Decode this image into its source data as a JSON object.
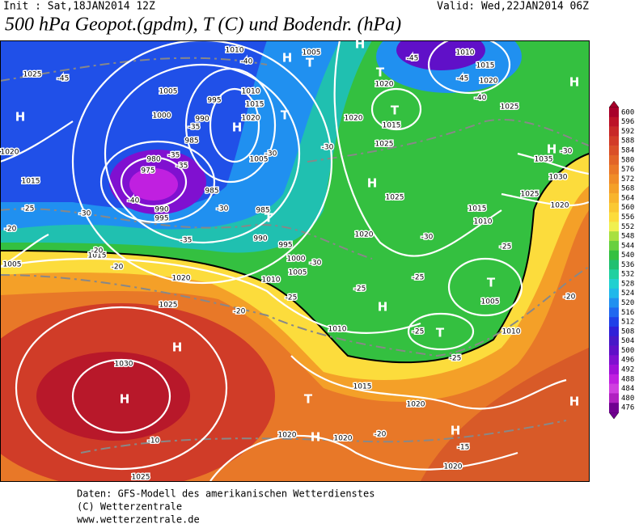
{
  "header": {
    "init": "Init : Sat,18JAN2014 12Z",
    "valid": "Valid: Wed,22JAN2014 06Z",
    "title": "500 hPa Geopot.(gpdm), T (C) und Bodendr. (hPa)"
  },
  "pressure_centers": [
    "H",
    "T",
    "H",
    "T",
    "H",
    "H",
    "H",
    "T",
    "T",
    "H",
    "H",
    "T",
    "T",
    "H",
    "T",
    "H",
    "H",
    "T",
    "H",
    "H",
    "H"
  ],
  "isobar_labels": [
    "1010",
    "1005",
    "1025",
    "1005",
    "995",
    "1010",
    "1015",
    "1020",
    "1000",
    "990",
    "985",
    "980",
    "975",
    "985",
    "990",
    "995",
    "985",
    "990",
    "995",
    "1000",
    "1005",
    "1010",
    "1015",
    "1020",
    "1025",
    "1030",
    "1020",
    "1020",
    "1015",
    "1025",
    "1025",
    "1020",
    "1015",
    "1010",
    "1005",
    "1010",
    "1010",
    "1015",
    "1020",
    "1020",
    "1020",
    "1020",
    "1025",
    "1035",
    "1030",
    "1025",
    "1020",
    "1010",
    "1015",
    "1020",
    "1025",
    "1005",
    "1020",
    "1015",
    "1005"
  ],
  "temperature_labels": [
    "-40",
    "-45",
    "-35",
    "-35",
    "-35",
    "-40",
    "-30",
    "-35",
    "-30",
    "-25",
    "-20",
    "-20",
    "-20",
    "-30",
    "-25",
    "-20",
    "-25",
    "-25",
    "-25",
    "-25",
    "-30",
    "-30",
    "-25",
    "-20",
    "-20",
    "-15",
    "-10",
    "-45",
    "-45",
    "-40",
    "-30",
    "-30"
  ],
  "colorbar": {
    "ticks": [
      600,
      596,
      592,
      588,
      584,
      580,
      576,
      572,
      568,
      564,
      560,
      556,
      552,
      548,
      544,
      540,
      536,
      532,
      528,
      524,
      520,
      516,
      512,
      508,
      504,
      500,
      496,
      492,
      488,
      484,
      480,
      476
    ],
    "colors": [
      "#a8002a",
      "#bc1228",
      "#c82828",
      "#d23c28",
      "#da5028",
      "#e26428",
      "#ea7828",
      "#f08c28",
      "#f4a028",
      "#f8b42c",
      "#fac832",
      "#fcdc3c",
      "#f0f050",
      "#a8e040",
      "#68d040",
      "#34c040",
      "#20c070",
      "#20d0a0",
      "#20d0d0",
      "#20b8ea",
      "#2090f0",
      "#2068f0",
      "#2040e8",
      "#3020d8",
      "#4818c8",
      "#6010c8",
      "#8010d0",
      "#a010d8",
      "#c020e0",
      "#d040e0",
      "#b020c0",
      "#700090"
    ]
  },
  "footer": [
    "Daten: GFS-Modell des amerikanischen Wetterdienstes",
    "(C) Wetterzentrale",
    "www.wetterzentrale.de"
  ]
}
